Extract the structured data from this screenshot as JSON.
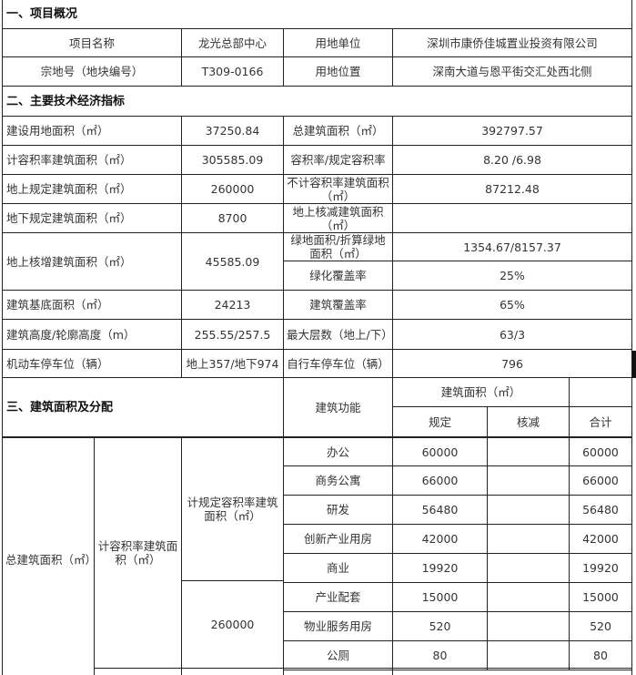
{
  "s1": {
    "title": "一、项目概况",
    "r1": [
      "项目名称",
      "龙光总部中心",
      "用地单位",
      "深圳市康侨佳城置业投资有限公司"
    ],
    "r2": [
      "宗地号（地块编号）",
      "T309-0166",
      "用地位置",
      "深南大道与恩平街交汇处西北侧"
    ]
  },
  "s2": {
    "title": "二、主要技术经济指标",
    "r1": [
      "建设用地面积（㎡）",
      "37250.84",
      "总建筑面积（㎡）",
      "392797.57"
    ],
    "r2": [
      "计容积率建筑面积（㎡）",
      "305585.09",
      "容积率/规定容积率",
      "8.20 /6.98"
    ],
    "r3": [
      "地上规定建筑面积（㎡）",
      "260000",
      "不计容积率建筑面积（㎡）",
      "87212.48"
    ],
    "r4": [
      "地下规定建筑面积（㎡）",
      "8700",
      "地上核减建筑面积（㎡）",
      ""
    ],
    "r5": [
      "地上核增建筑面积（㎡）",
      "45585.09",
      "绿地面积/折算绿地面积（㎡）",
      "1354.67/8157.37",
      "绿化覆盖率",
      "25%"
    ],
    "r6": [
      "建筑基底面积（㎡）",
      "24213",
      "建筑覆盖率",
      "65%"
    ],
    "r7": [
      "建筑高度/轮廓高度（m）",
      "255.55/257.5",
      "最大层数（地上/下）",
      "63/3"
    ],
    "r8": [
      "机动车停车位（辆）",
      "地上357/地下974",
      "自行车停车位（辆）",
      "796"
    ]
  },
  "s3": {
    "title": "三、建筑面积及分配",
    "func": "建筑功能",
    "area": "建筑面积（㎡）",
    "reg": "规定",
    "cut": "核减",
    "total": "合计",
    "total_area": "总建筑面积（㎡）",
    "far_area": "计容积率建筑面积（㎡）",
    "reg_far": "计规定容积率建筑面积（㎡）",
    "reg_far_value": "260000",
    "rows": [
      {
        "f": "办公",
        "r": "60000",
        "c": "",
        "t": "60000"
      },
      {
        "f": "商务公寓",
        "r": "66000",
        "c": "",
        "t": "66000"
      },
      {
        "f": "研发",
        "r": "56480",
        "c": "",
        "t": "56480"
      },
      {
        "f": "创新产业用房",
        "r": "42000",
        "c": "",
        "t": "42000"
      },
      {
        "f": "商业",
        "r": "19920",
        "c": "",
        "t": "19920"
      },
      {
        "f": "产业配套",
        "r": "15000",
        "c": "",
        "t": "15000"
      },
      {
        "f": "物业服务用房",
        "r": "520",
        "c": "",
        "t": "520"
      },
      {
        "f": "公厕",
        "r": "80",
        "c": "",
        "t": "80"
      }
    ]
  }
}
